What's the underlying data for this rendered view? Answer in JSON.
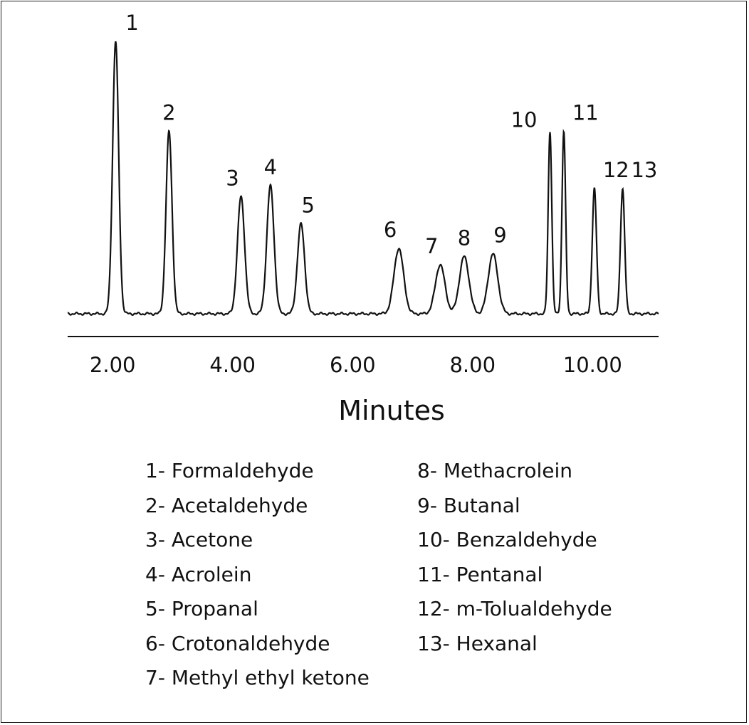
{
  "chart_data": {
    "type": "line",
    "xlabel": "Minutes",
    "xlim": [
      1.25,
      11.1
    ],
    "ylim": [
      0,
      100
    ],
    "xticks": [
      2.0,
      4.0,
      6.0,
      8.0,
      10.0
    ],
    "xtick_labels": [
      "2.00",
      "4.00",
      "6.00",
      "8.00",
      "10.00"
    ],
    "baseline": 0,
    "peaks": [
      {
        "label": "1",
        "x": 2.05,
        "height": 100,
        "width": 0.05
      },
      {
        "label": "2",
        "x": 2.94,
        "height": 67,
        "width": 0.05
      },
      {
        "label": "3",
        "x": 4.14,
        "height": 43,
        "width": 0.06
      },
      {
        "label": "4",
        "x": 4.63,
        "height": 47,
        "width": 0.06
      },
      {
        "label": "5",
        "x": 5.14,
        "height": 33,
        "width": 0.06
      },
      {
        "label": "6",
        "x": 6.77,
        "height": 24,
        "width": 0.08
      },
      {
        "label": "7",
        "x": 7.46,
        "height": 18,
        "width": 0.08
      },
      {
        "label": "8",
        "x": 7.86,
        "height": 21,
        "width": 0.08
      },
      {
        "label": "9",
        "x": 8.34,
        "height": 22,
        "width": 0.08
      },
      {
        "label": "10",
        "x": 9.29,
        "height": 67,
        "width": 0.03
      },
      {
        "label": "11",
        "x": 9.52,
        "height": 67,
        "width": 0.03
      },
      {
        "label": "12",
        "x": 10.03,
        "height": 46,
        "width": 0.035
      },
      {
        "label": "13",
        "x": 10.5,
        "height": 46,
        "width": 0.035
      }
    ],
    "legend": [
      [
        "1- Formaldehyde",
        "2- Acetaldehyde",
        "3- Acetone",
        "4- Acrolein",
        "5- Propanal",
        "6- Crotonaldehyde",
        "7- Methyl ethyl ketone"
      ],
      [
        "8- Methacrolein",
        "9- Butanal",
        "10- Benzaldehyde",
        "11- Pentanal",
        "12- m-Tolualdehyde",
        "13- Hexanal"
      ]
    ],
    "grid": false,
    "line_color": "#111111"
  }
}
